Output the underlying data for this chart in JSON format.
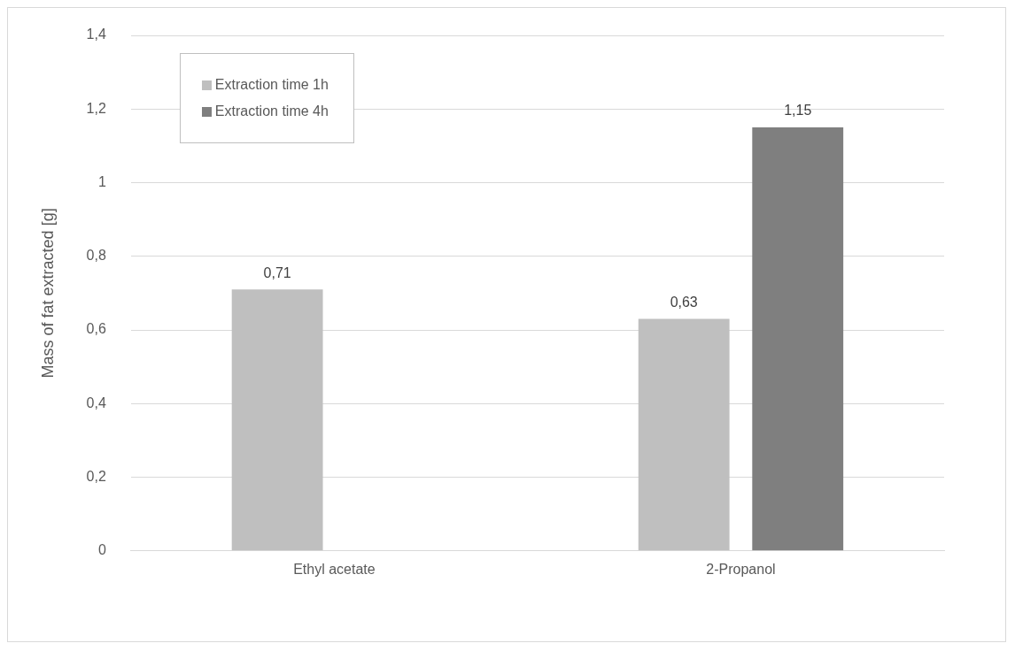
{
  "chart_data": {
    "type": "bar",
    "ylabel": "Mass of fat extracted [g]",
    "categories": [
      "Ethyl acetate",
      "2-Propanol"
    ],
    "series": [
      {
        "name": "Extraction time 1h",
        "color": "#bfbfbf",
        "values": [
          0.71,
          0.63
        ],
        "value_labels": [
          "0,71",
          "0,63"
        ]
      },
      {
        "name": "Extraction time 4h",
        "color": "#7f7f7f",
        "values": [
          null,
          1.15
        ],
        "value_labels": [
          null,
          "1,15"
        ]
      }
    ],
    "ylim": [
      0,
      1.4
    ],
    "yticks": [
      {
        "value": 0,
        "label": "0"
      },
      {
        "value": 0.2,
        "label": "0,2"
      },
      {
        "value": 0.4,
        "label": "0,4"
      },
      {
        "value": 0.6,
        "label": "0,6"
      },
      {
        "value": 0.8,
        "label": "0,8"
      },
      {
        "value": 1,
        "label": "1"
      },
      {
        "value": 1.2,
        "label": "1,2"
      },
      {
        "value": 1.4,
        "label": "1,4"
      }
    ],
    "grid": "y",
    "legend": "top left"
  }
}
